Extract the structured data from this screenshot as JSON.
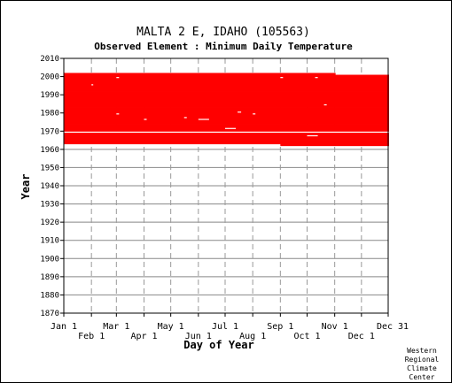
{
  "chart_data": {
    "type": "heatmap",
    "title": "MALTA 2 E, IDAHO   (105563)",
    "subtitle": "Observed Element : Minimum Daily Temperature",
    "xlabel": "Day of Year",
    "ylabel": "Year",
    "ylim": [
      1870,
      2010
    ],
    "yticks": [
      1870,
      1880,
      1890,
      1900,
      1910,
      1920,
      1930,
      1940,
      1950,
      1960,
      1970,
      1980,
      1990,
      2000,
      2010
    ],
    "xlim": [
      "Jan 1",
      "Dec 31"
    ],
    "xticks_top_row": [
      "Jan 1",
      "Mar 1",
      "May 1",
      "Jul 1",
      "Sep 1",
      "Nov 1",
      "Dec 31"
    ],
    "xticks_bottom_row": [
      "Feb 1",
      "Apr 1",
      "Jun 1",
      "Aug 1",
      "Oct 1",
      "Dec 1"
    ],
    "grid": true,
    "data_color": "#ff0000",
    "observed_year_range": [
      1962,
      2001
    ],
    "gaps": [
      {
        "year": 1969,
        "from": "Jan 1",
        "to": "Dec 31"
      },
      {
        "year": 1995,
        "from": "Feb 1",
        "to": "Feb 2"
      },
      {
        "year": 1979,
        "from": "Mar 1",
        "to": "Mar 3"
      },
      {
        "year": 1999,
        "from": "Mar 1",
        "to": "Mar 3"
      },
      {
        "year": 1976,
        "from": "Apr 1",
        "to": "Apr 3"
      },
      {
        "year": 1977,
        "from": "May 16",
        "to": "May 18"
      },
      {
        "year": 1976,
        "from": "Jun 1",
        "to": "Jun 12"
      },
      {
        "year": 1971,
        "from": "Jul 1",
        "to": "Jul 12"
      },
      {
        "year": 1980,
        "from": "Jul 15",
        "to": "Jul 18"
      },
      {
        "year": 1979,
        "from": "Aug 1",
        "to": "Aug 3"
      },
      {
        "year": 1999,
        "from": "Sep 1",
        "to": "Sep 3"
      },
      {
        "year": 1967,
        "from": "Oct 1",
        "to": "Oct 12"
      },
      {
        "year": 1984,
        "from": "Oct 20",
        "to": "Oct 22"
      },
      {
        "year": 1999,
        "from": "Oct 10",
        "to": "Oct 12"
      }
    ],
    "row_extents": [
      {
        "year": 1962,
        "from": "Sep 1",
        "to": "Dec 31"
      },
      {
        "year": 2001,
        "from": "Jan 1",
        "to": "Nov 1"
      }
    ]
  },
  "credit_lines": [
    "Western",
    "Regional",
    "Climate",
    "Center"
  ]
}
